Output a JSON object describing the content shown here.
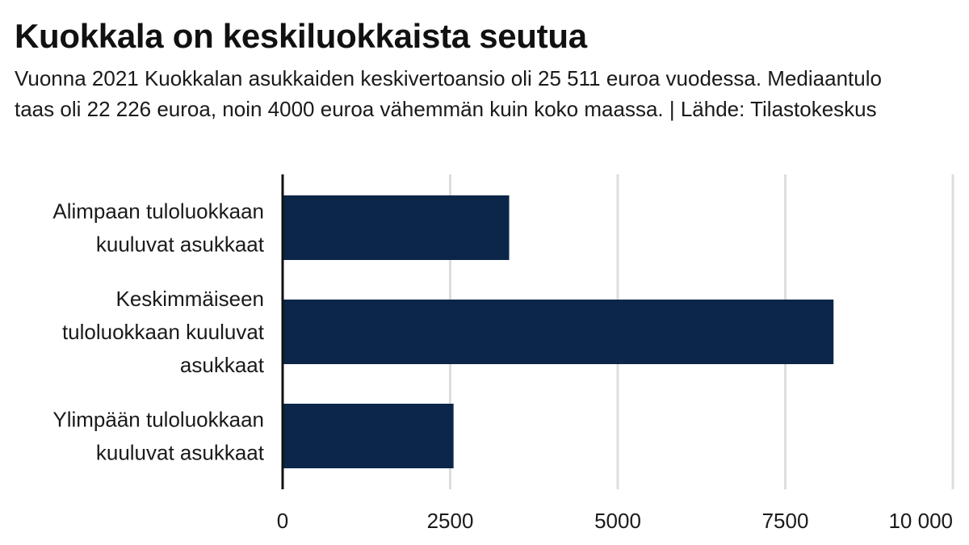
{
  "chart_data": {
    "type": "bar",
    "orientation": "horizontal",
    "title": "Kuokkala on keskiluokkaista seutua",
    "subtitle": "Vuonna 2021 Kuokkalan asukkaiden keskivertoansio oli 25 511 euroa vuodessa. Mediaantulo taas oli 22 226 euroa, noin 4000 euroa vähemmän kuin koko maassa. | Lähde: Tilastokeskus",
    "categories": [
      [
        "Alimpaan tuloluokkaan",
        "kuuluvat asukkaat"
      ],
      [
        "Keskimmäiseen",
        "tuloluokkaan kuuluvat",
        "asukkaat"
      ],
      [
        "Ylimpään tuloluokkaan",
        "kuuluvat asukkaat"
      ]
    ],
    "values": [
      3380,
      8220,
      2550
    ],
    "xlim": [
      0,
      10000
    ],
    "xticks": [
      0,
      2500,
      5000,
      7500,
      10000
    ],
    "xtick_labels": [
      "0",
      "2500",
      "5000",
      "7500",
      "10 000"
    ],
    "grid": true,
    "colors": {
      "bar": "#0b2649",
      "grid": "#dddddd",
      "axis": "#111111"
    }
  }
}
